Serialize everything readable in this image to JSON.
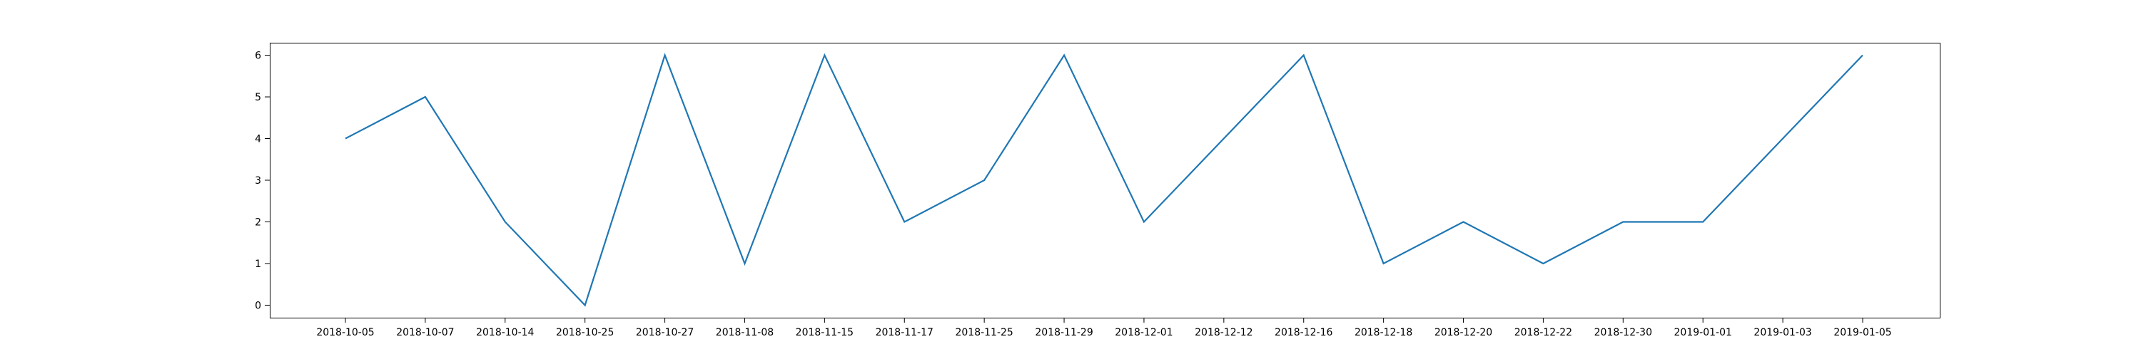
{
  "chart_data": {
    "type": "line",
    "title": "",
    "xlabel": "",
    "ylabel": "",
    "categories": [
      "2018-10-05",
      "2018-10-07",
      "2018-10-14",
      "2018-10-25",
      "2018-10-27",
      "2018-11-08",
      "2018-11-15",
      "2018-11-17",
      "2018-11-25",
      "2018-11-29",
      "2018-12-01",
      "2018-12-12",
      "2018-12-16",
      "2018-12-18",
      "2018-12-20",
      "2018-12-22",
      "2018-12-30",
      "2019-01-01",
      "2019-01-03",
      "2019-01-05"
    ],
    "series": [
      {
        "values": [
          4,
          5,
          2,
          0,
          6,
          1,
          6,
          2,
          3,
          6,
          2,
          4,
          6,
          1,
          2,
          1,
          2,
          2,
          4,
          6
        ],
        "color": "#1f77b4"
      }
    ],
    "ylim": [
      -0.3,
      6.3
    ],
    "yticks": [
      0,
      1,
      2,
      3,
      4,
      5,
      6
    ],
    "grid": false,
    "legend": "none"
  }
}
